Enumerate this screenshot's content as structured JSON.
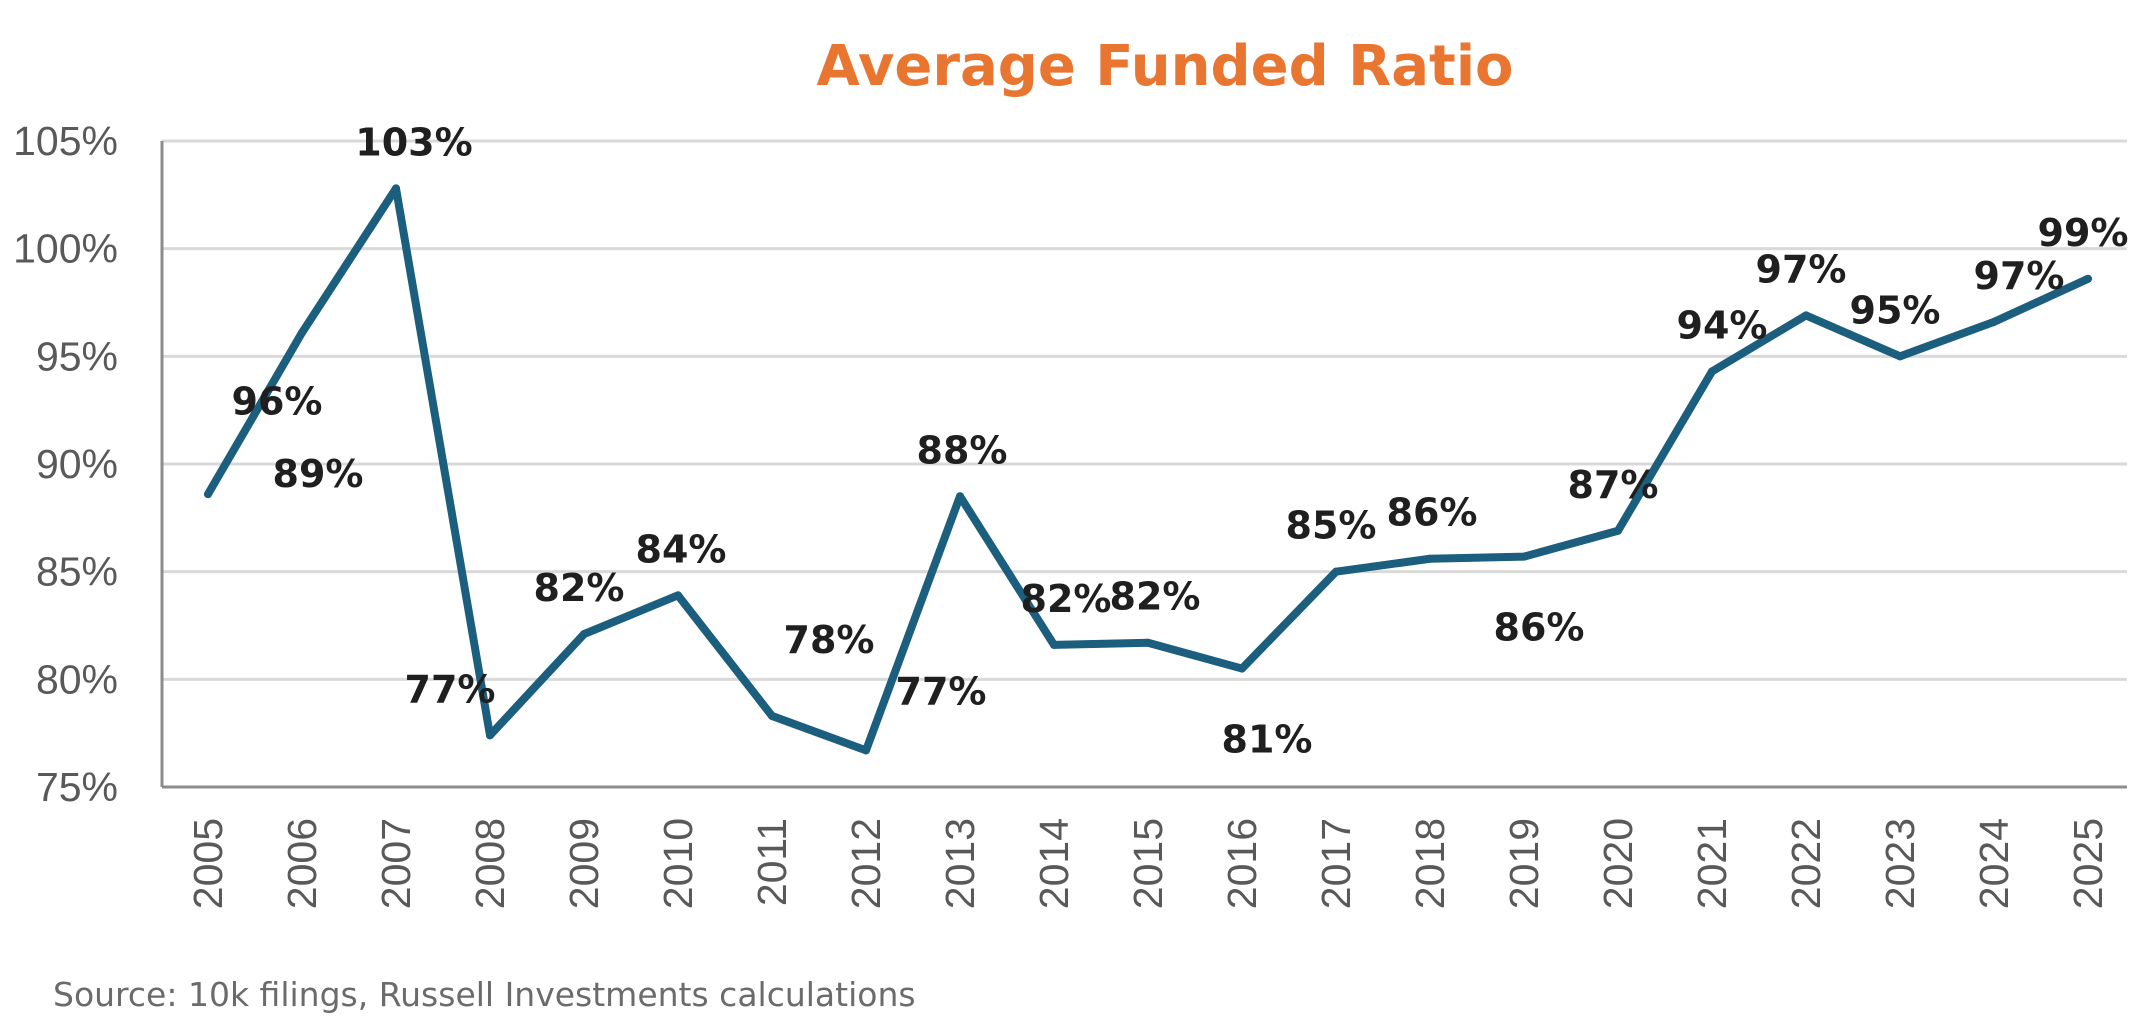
{
  "chart_data": {
    "type": "line",
    "title": "Average Funded Ratio",
    "x": [
      "2005",
      "2006",
      "2007",
      "2008",
      "2009",
      "2010",
      "2011",
      "2012",
      "2013",
      "2014",
      "2015",
      "2016",
      "2017",
      "2018",
      "2019",
      "2020",
      "2021",
      "2022",
      "2023",
      "2024",
      "2025"
    ],
    "series": [
      {
        "values": [
          88.6,
          96.1,
          102.8,
          77.4,
          82.1,
          83.9,
          78.3,
          76.7,
          88.5,
          81.6,
          81.7,
          80.5,
          85.0,
          85.6,
          85.7,
          86.9,
          94.3,
          96.9,
          95.0,
          96.6,
          98.6
        ],
        "labels": [
          "89%",
          "96%",
          "103%",
          "77%",
          "82%",
          "84%",
          "78%",
          "77%",
          "88%",
          "82%",
          "82%",
          "81%",
          "85%",
          "86%",
          "86%",
          "87%",
          "94%",
          "97%",
          "95%",
          "97%",
          "99%"
        ],
        "color": "#1b5e7d"
      }
    ],
    "ylim": [
      75,
      105
    ],
    "yticks": [
      75,
      80,
      85,
      90,
      95,
      100,
      105
    ],
    "ytick_labels": [
      "75%",
      "80%",
      "85%",
      "90%",
      "95%",
      "100%",
      "105%"
    ],
    "grid": true,
    "legend": "none",
    "colors": {
      "title": "#e87530",
      "grid": "#d9d9d9",
      "axis": "#8c8c8c"
    }
  },
  "source": "Source: 10k filings, Russell Investments calculations"
}
